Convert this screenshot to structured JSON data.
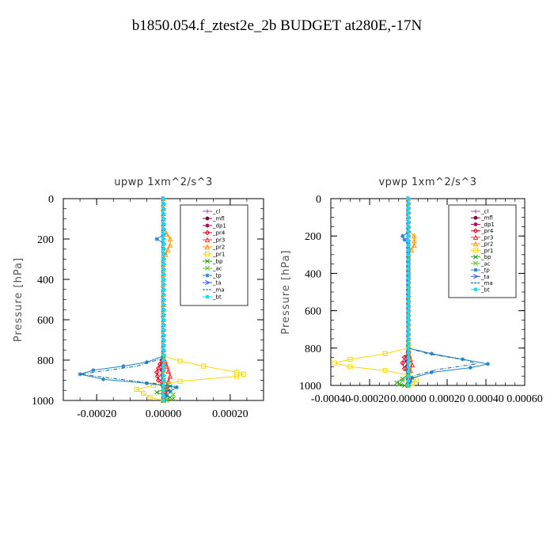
{
  "title": "b1850.054.f_ztest2e_2b  BUDGET at280E,-17N",
  "legend_entries": [
    "_cl",
    "_mfl",
    "_dp1",
    "_pr4",
    "_pr3",
    "_pr2",
    "_pr1",
    "_bp",
    "_ac",
    "_tp",
    "_ta",
    "_ma",
    "_bt"
  ],
  "colors": {
    "_cl": "#8c4fd0",
    "_mfl": "#800040",
    "_dp1": "#b80055",
    "_pr4": "#e0001a",
    "_pr3": "#ff3030",
    "_pr2": "#ff9900",
    "_pr1": "#ffd700",
    "_bp": "#2aa02a",
    "_ac": "#55cc22",
    "_tp": "#1f7fd0",
    "_ta": "#3355ee",
    "_ma": "#0a6f8a",
    "_bt": "#00e5ff"
  },
  "chart_data": [
    {
      "type": "line",
      "title": "upwp   1xm^2/s^3",
      "ylabel": "Pressure [hPa]",
      "xlim": [
        -0.0003,
        0.0003
      ],
      "ylim": [
        1000,
        0
      ],
      "yticks": [
        0,
        200,
        400,
        600,
        800,
        1000
      ],
      "xticks": [
        -0.0002,
        0.0,
        0.0002
      ],
      "xtick_labels": [
        "-0.00020",
        "0.00000",
        "0.00020"
      ],
      "legend_position": "top-right",
      "series": [
        {
          "name": "_cl",
          "marker": "plus",
          "points": [
            [
              0,
              0
            ],
            [
              0,
              100
            ],
            [
              0,
              200
            ],
            [
              0,
              300
            ],
            [
              0,
              400
            ],
            [
              0,
              500
            ],
            [
              0,
              600
            ],
            [
              0,
              700
            ],
            [
              0,
              800
            ],
            [
              0,
              900
            ],
            [
              0,
              1000
            ]
          ]
        },
        {
          "name": "_mfl",
          "marker": "circle",
          "points": [
            [
              0,
              0
            ],
            [
              0,
              100
            ],
            [
              0,
              200
            ],
            [
              0,
              300
            ],
            [
              0,
              400
            ],
            [
              0,
              500
            ],
            [
              0,
              600
            ],
            [
              0,
              700
            ],
            [
              0,
              800
            ],
            [
              0,
              900
            ],
            [
              0,
              1000
            ]
          ]
        },
        {
          "name": "_dp1",
          "marker": "circle",
          "points": [
            [
              0,
              0
            ],
            [
              0,
              200
            ],
            [
              0,
              400
            ],
            [
              0,
              600
            ],
            [
              0,
              750
            ],
            [
              -5e-06,
              850
            ],
            [
              0,
              950
            ],
            [
              0,
              1000
            ]
          ]
        },
        {
          "name": "_pr4",
          "marker": "diamond",
          "points": [
            [
              0,
              780
            ],
            [
              -1e-05,
              820
            ],
            [
              -2e-05,
              860
            ],
            [
              -1.5e-05,
              900
            ],
            [
              1e-05,
              950
            ],
            [
              0,
              1000
            ]
          ]
        },
        {
          "name": "_pr3",
          "marker": "triangle",
          "points": [
            [
              0,
              780
            ],
            [
              1e-05,
              830
            ],
            [
              2e-05,
              880
            ],
            [
              1e-05,
              930
            ],
            [
              0,
              980
            ]
          ]
        },
        {
          "name": "_pr2",
          "marker": "triangle",
          "points": [
            [
              0,
              0
            ],
            [
              0,
              150
            ],
            [
              2e-05,
              200
            ],
            [
              2e-05,
              230
            ],
            [
              0,
              300
            ],
            [
              0,
              1000
            ]
          ]
        },
        {
          "name": "_pr1",
          "marker": "square",
          "points": [
            [
              0,
              780
            ],
            [
              5e-05,
              805
            ],
            [
              0.00012,
              830
            ],
            [
              0.00022,
              860
            ],
            [
              0.00024,
              870
            ],
            [
              0.00022,
              880
            ],
            [
              5e-05,
              905
            ],
            [
              -3e-05,
              925
            ],
            [
              -8e-05,
              945
            ],
            [
              -6e-05,
              965
            ],
            [
              -4e-05,
              985
            ],
            [
              0,
              1000
            ]
          ]
        },
        {
          "name": "_bp",
          "marker": "cross",
          "points": [
            [
              0,
              900
            ],
            [
              2e-05,
              930
            ],
            [
              -2e-05,
              960
            ],
            [
              2e-05,
              985
            ],
            [
              0,
              1000
            ]
          ]
        },
        {
          "name": "_ac",
          "marker": "cross",
          "points": [
            [
              0,
              940
            ],
            [
              3e-05,
              970
            ],
            [
              3e-05,
              990
            ],
            [
              1e-05,
              1000
            ]
          ]
        },
        {
          "name": "_tp",
          "marker": "star",
          "points": [
            [
              0,
              0
            ],
            [
              0,
              180
            ],
            [
              -2e-05,
              200
            ],
            [
              0,
              220
            ],
            [
              0,
              780
            ],
            [
              -5e-05,
              810
            ],
            [
              -0.00012,
              830
            ],
            [
              -0.00021,
              850
            ],
            [
              -0.00025,
              870
            ],
            [
              -0.00018,
              895
            ],
            [
              -5e-05,
              915
            ],
            [
              4e-05,
              935
            ],
            [
              2e-05,
              955
            ],
            [
              0,
              1000
            ]
          ]
        },
        {
          "name": "_ta",
          "marker": "arrow",
          "points": [
            [
              0,
              0
            ],
            [
              0,
              200
            ],
            [
              0,
              400
            ],
            [
              0,
              600
            ],
            [
              0,
              800
            ],
            [
              0,
              900
            ],
            [
              0,
              1000
            ]
          ]
        },
        {
          "name": "_ma",
          "marker": "none",
          "points": [
            [
              0,
              790
            ],
            [
              -8e-05,
              830
            ],
            [
              -0.00025,
              870
            ],
            [
              -8e-05,
              905
            ],
            [
              4e-05,
              930
            ],
            [
              0,
              960
            ],
            [
              0,
              1000
            ]
          ]
        },
        {
          "name": "_bt",
          "marker": "circle",
          "points": [
            [
              0,
              0
            ],
            [
              0,
              500
            ],
            [
              0,
              1000
            ]
          ]
        }
      ]
    },
    {
      "type": "line",
      "title": "vpwp   1xm^2/s^3",
      "ylabel": "Pressure [hPa]",
      "xlim": [
        -0.0004,
        0.0006
      ],
      "ylim": [
        1000,
        0
      ],
      "yticks": [
        0,
        200,
        400,
        600,
        800,
        1000
      ],
      "xticks": [
        -0.0004,
        -0.0002,
        0.0,
        0.0002,
        0.0004,
        0.0006
      ],
      "xtick_labels": [
        "-0.00040",
        "-0.00020",
        "0.00000",
        "0.00020",
        "0.00040",
        "0.00060"
      ],
      "legend_position": "top-right",
      "series": [
        {
          "name": "_cl",
          "marker": "plus",
          "points": [
            [
              0,
              0
            ],
            [
              0,
              100
            ],
            [
              0,
              200
            ],
            [
              0,
              300
            ],
            [
              0,
              400
            ],
            [
              0,
              500
            ],
            [
              0,
              600
            ],
            [
              0,
              700
            ],
            [
              0,
              800
            ],
            [
              0,
              900
            ],
            [
              0,
              1000
            ]
          ]
        },
        {
          "name": "_mfl",
          "marker": "circle",
          "points": [
            [
              0,
              0
            ],
            [
              0,
              100
            ],
            [
              0,
              200
            ],
            [
              0,
              300
            ],
            [
              0,
              400
            ],
            [
              0,
              500
            ],
            [
              0,
              600
            ],
            [
              0,
              700
            ],
            [
              0,
              800
            ],
            [
              0,
              900
            ],
            [
              0,
              1000
            ]
          ]
        },
        {
          "name": "_dp1",
          "marker": "circle",
          "points": [
            [
              0,
              0
            ],
            [
              0,
              300
            ],
            [
              0,
              600
            ],
            [
              0,
              800
            ],
            [
              -1e-05,
              870
            ],
            [
              0,
              950
            ],
            [
              0,
              1000
            ]
          ]
        },
        {
          "name": "_pr4",
          "marker": "diamond",
          "points": [
            [
              0,
              820
            ],
            [
              -2e-05,
              850
            ],
            [
              -3e-05,
              880
            ],
            [
              -2e-05,
              910
            ],
            [
              0,
              940
            ],
            [
              0,
              1000
            ]
          ]
        },
        {
          "name": "_pr3",
          "marker": "triangle",
          "points": [
            [
              0,
              820
            ],
            [
              1e-05,
              860
            ],
            [
              2e-05,
              890
            ],
            [
              1e-05,
              920
            ],
            [
              0,
              950
            ]
          ]
        },
        {
          "name": "_pr2",
          "marker": "triangle",
          "points": [
            [
              0,
              0
            ],
            [
              0,
              170
            ],
            [
              3e-05,
              200
            ],
            [
              3e-05,
              250
            ],
            [
              0,
              300
            ],
            [
              0,
              1000
            ]
          ]
        },
        {
          "name": "_pr1",
          "marker": "square",
          "points": [
            [
              0,
              800
            ],
            [
              -0.00012,
              830
            ],
            [
              -0.0003,
              860
            ],
            [
              -0.00038,
              880
            ],
            [
              -0.0003,
              900
            ],
            [
              -0.00012,
              920
            ],
            [
              0,
              945
            ],
            [
              4e-05,
              970
            ],
            [
              2e-05,
              990
            ],
            [
              0,
              1000
            ]
          ]
        },
        {
          "name": "_bp",
          "marker": "cross",
          "points": [
            [
              0,
              940
            ],
            [
              -3e-05,
              965
            ],
            [
              -6e-05,
              985
            ],
            [
              -2e-05,
              1000
            ]
          ]
        },
        {
          "name": "_ac",
          "marker": "cross",
          "points": [
            [
              0,
              950
            ],
            [
              -3e-05,
              975
            ],
            [
              -5e-05,
              995
            ],
            [
              0,
              1000
            ]
          ]
        },
        {
          "name": "_tp",
          "marker": "star",
          "points": [
            [
              0,
              0
            ],
            [
              0,
              180
            ],
            [
              -3e-05,
              200
            ],
            [
              -2e-05,
              220
            ],
            [
              0,
              240
            ],
            [
              0,
              800
            ],
            [
              0.00012,
              830
            ],
            [
              0.00028,
              860
            ],
            [
              0.00041,
              885
            ],
            [
              0.00032,
              905
            ],
            [
              0.00012,
              930
            ],
            [
              2e-05,
              960
            ],
            [
              0,
              1000
            ]
          ]
        },
        {
          "name": "_ta",
          "marker": "arrow",
          "points": [
            [
              0,
              0
            ],
            [
              0,
              200
            ],
            [
              0,
              400
            ],
            [
              0,
              600
            ],
            [
              0,
              800
            ],
            [
              0,
              900
            ],
            [
              0,
              1000
            ]
          ]
        },
        {
          "name": "_ma",
          "marker": "none",
          "points": [
            [
              0,
              800
            ],
            [
              0.0001,
              830
            ],
            [
              0.0003,
              865
            ],
            [
              0.00035,
              885
            ],
            [
              0.00015,
              915
            ],
            [
              2e-05,
              950
            ],
            [
              0,
              1000
            ]
          ]
        },
        {
          "name": "_bt",
          "marker": "circle",
          "points": [
            [
              0,
              0
            ],
            [
              0,
              500
            ],
            [
              0,
              1000
            ]
          ]
        }
      ]
    }
  ]
}
